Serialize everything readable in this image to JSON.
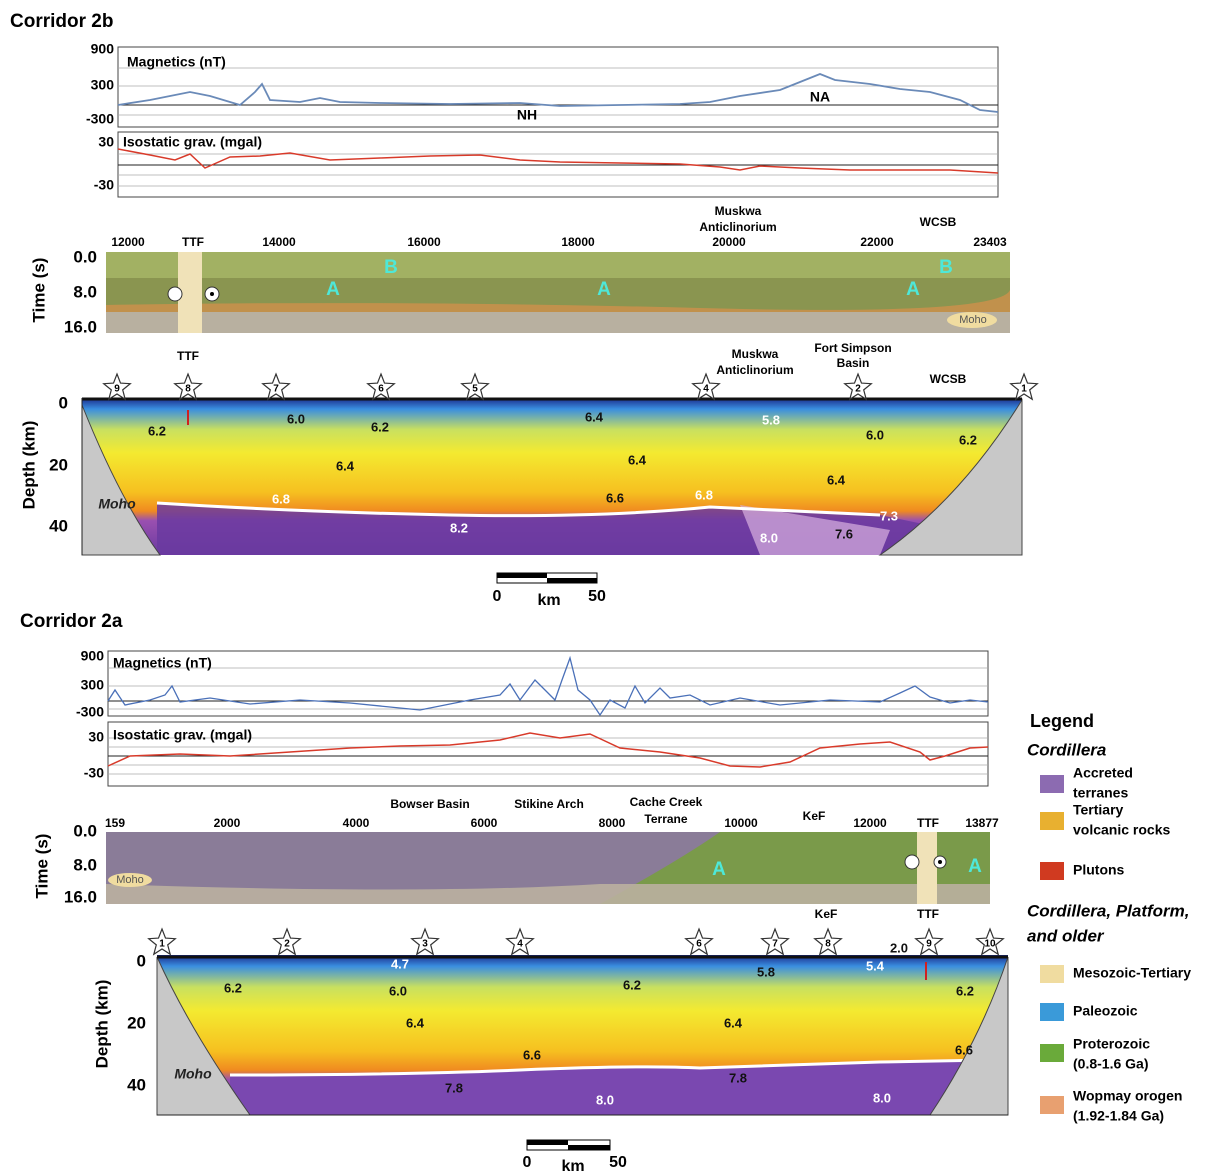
{
  "corridor_2b": {
    "title": "Corridor 2b",
    "magnetics_label": "Magnetics (nT)",
    "magnetics_ticks": [
      "900",
      "300",
      "-300"
    ],
    "magnetics_annotations": [
      "NH",
      "NA"
    ],
    "gravity_label": "Isostatic grav. (mgal)",
    "gravity_ticks": [
      "30",
      "-30"
    ],
    "time_axis_label": "Time (s)",
    "time_ticks": [
      "0.0",
      "8.0",
      "16.0"
    ],
    "cdp_ticks": [
      "12000",
      "14000",
      "16000",
      "18000",
      "20000",
      "22000",
      "23403"
    ],
    "time_annotations": [
      "TTF",
      "Muskwa",
      "Anticlinorium",
      "WCSB"
    ],
    "domain_labels": [
      "B",
      "A",
      "A",
      "A",
      "B"
    ],
    "moho_time": "Moho",
    "depth_axis_label": "Depth (km)",
    "depth_ticks": [
      "0",
      "20",
      "40"
    ],
    "stations": [
      "9",
      "8",
      "7",
      "6",
      "5",
      "4",
      "2",
      "1"
    ],
    "depth_annotations": [
      "TTF",
      "Muskwa",
      "Anticlinorium",
      "Fort Simpson",
      "Basin",
      "WCSB"
    ],
    "moho_depth": "Moho",
    "velocities": [
      "6.2",
      "6.0",
      "6.2",
      "6.4",
      "6.8",
      "6.4",
      "6.4",
      "6.6",
      "6.8",
      "5.8",
      "6.0",
      "6.2",
      "6.4",
      "7.3",
      "7.6",
      "8.2",
      "8.0"
    ],
    "scale": [
      "0",
      "km",
      "50"
    ]
  },
  "corridor_2a": {
    "title": "Corridor 2a",
    "magnetics_label": "Magnetics (nT)",
    "magnetics_ticks": [
      "900",
      "300",
      "-300"
    ],
    "gravity_label": "Isostatic grav. (mgal)",
    "gravity_ticks": [
      "30",
      "-30"
    ],
    "time_axis_label": "Time (s)",
    "time_ticks": [
      "0.0",
      "8.0",
      "16.0"
    ],
    "cdp_ticks": [
      "159",
      "2000",
      "4000",
      "6000",
      "8000",
      "10000",
      "12000",
      "13877"
    ],
    "time_annotations": [
      "Bowser Basin",
      "Stikine Arch",
      "Cache Creek",
      "Terrane",
      "KeF",
      "TTF"
    ],
    "domain_labels": [
      "A",
      "A"
    ],
    "moho_time": "Moho",
    "depth_axis_label": "Depth (km)",
    "depth_ticks": [
      "0",
      "20",
      "40"
    ],
    "stations": [
      "1",
      "2",
      "3",
      "4",
      "6",
      "7",
      "8",
      "9",
      "10"
    ],
    "depth_annotations": [
      "KeF",
      "TTF"
    ],
    "moho_depth": "Moho",
    "velocities": [
      "4.7",
      "6.2",
      "6.0",
      "6.4",
      "6.6",
      "7.8",
      "8.0",
      "6.2",
      "6.4",
      "5.8",
      "5.4",
      "2.0",
      "6.2",
      "6.6",
      "7.8",
      "8.0"
    ],
    "scale": [
      "0",
      "km",
      "50"
    ]
  },
  "legend": {
    "title": "Legend",
    "group_1": "Cordillera",
    "group_1_items": [
      [
        "Accreted",
        "terranes"
      ],
      [
        "Tertiary",
        "volcanic rocks"
      ],
      [
        "Plutons"
      ]
    ],
    "group_2": [
      "Cordillera, Platform,",
      "and older"
    ],
    "group_2_items": [
      [
        "Mesozoic-Tertiary"
      ],
      [
        "Paleozoic"
      ],
      [
        "Proterozoic",
        "(0.8-1.6 Ga)"
      ],
      [
        "Wopmay orogen",
        "(1.92-1.84 Ga)"
      ]
    ]
  }
}
